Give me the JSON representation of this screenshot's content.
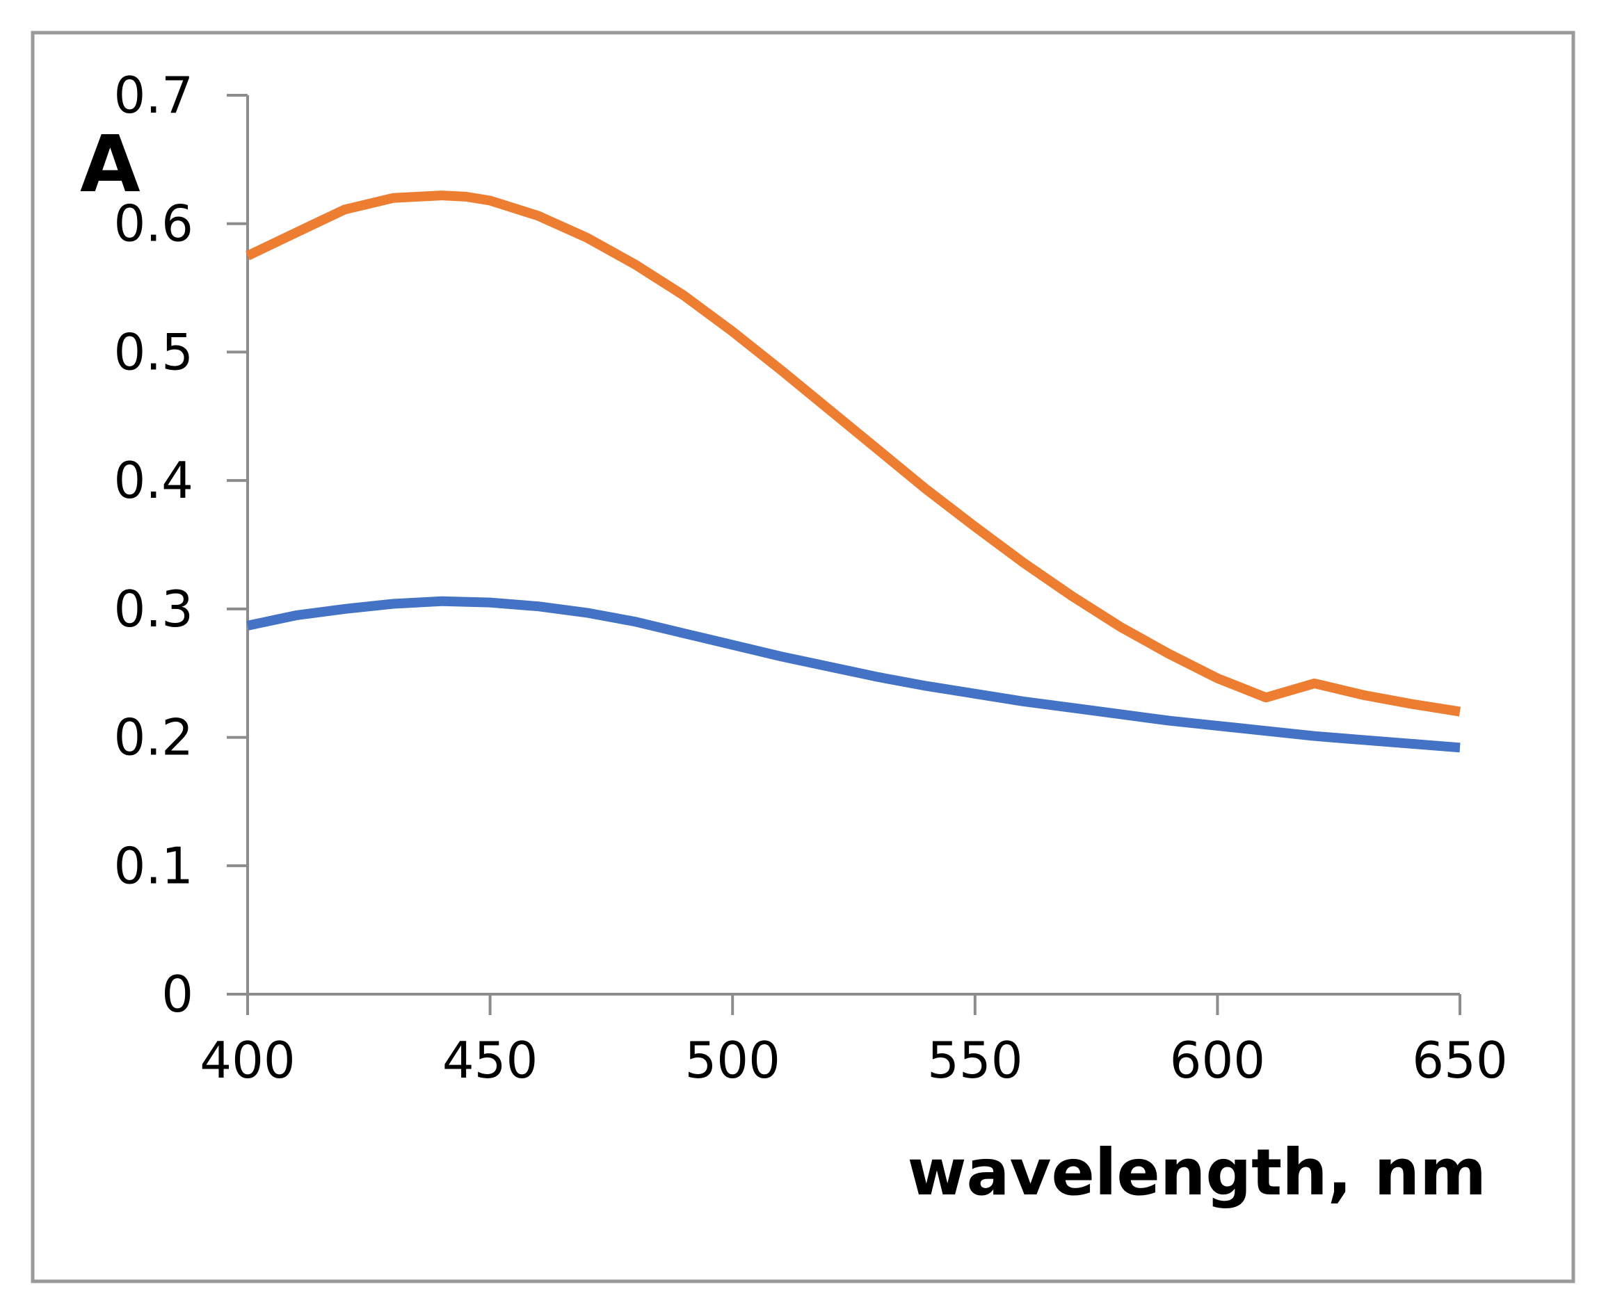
{
  "chart_data": {
    "type": "line",
    "title": "",
    "xlabel": "wavelength, nm",
    "ylabel": "A",
    "xlim": [
      400,
      650
    ],
    "ylim": [
      0,
      0.7
    ],
    "x_ticks": [
      "400",
      "450",
      "500",
      "550",
      "600",
      "650"
    ],
    "y_ticks": [
      "0",
      "0.1",
      "0.2",
      "0.3",
      "0.4",
      "0.5",
      "0.6",
      "0.7"
    ],
    "grid": false,
    "legend": "none",
    "series": [
      {
        "name": "orange series",
        "color": "#ED7D31",
        "x": [
          400,
          410,
          420,
          430,
          440,
          445,
          450,
          460,
          470,
          480,
          490,
          500,
          510,
          520,
          530,
          540,
          550,
          560,
          570,
          580,
          590,
          600,
          610,
          620,
          630,
          640,
          650
        ],
        "y": [
          0.575,
          0.593,
          0.611,
          0.62,
          0.622,
          0.621,
          0.618,
          0.606,
          0.589,
          0.568,
          0.544,
          0.516,
          0.486,
          0.455,
          0.424,
          0.393,
          0.364,
          0.336,
          0.31,
          0.286,
          0.265,
          0.246,
          0.231,
          0.242,
          0.233,
          0.226,
          0.22
        ]
      },
      {
        "name": "blue series",
        "color": "#4472C4",
        "x": [
          400,
          410,
          420,
          430,
          440,
          450,
          460,
          470,
          480,
          490,
          500,
          510,
          520,
          530,
          540,
          550,
          560,
          570,
          580,
          590,
          600,
          610,
          620,
          630,
          640,
          650
        ],
        "y": [
          0.287,
          0.295,
          0.3,
          0.304,
          0.306,
          0.305,
          0.302,
          0.297,
          0.29,
          0.281,
          0.272,
          0.263,
          0.255,
          0.247,
          0.24,
          0.234,
          0.228,
          0.223,
          0.218,
          0.213,
          0.209,
          0.205,
          0.201,
          0.198,
          0.195,
          0.192
        ]
      }
    ]
  }
}
